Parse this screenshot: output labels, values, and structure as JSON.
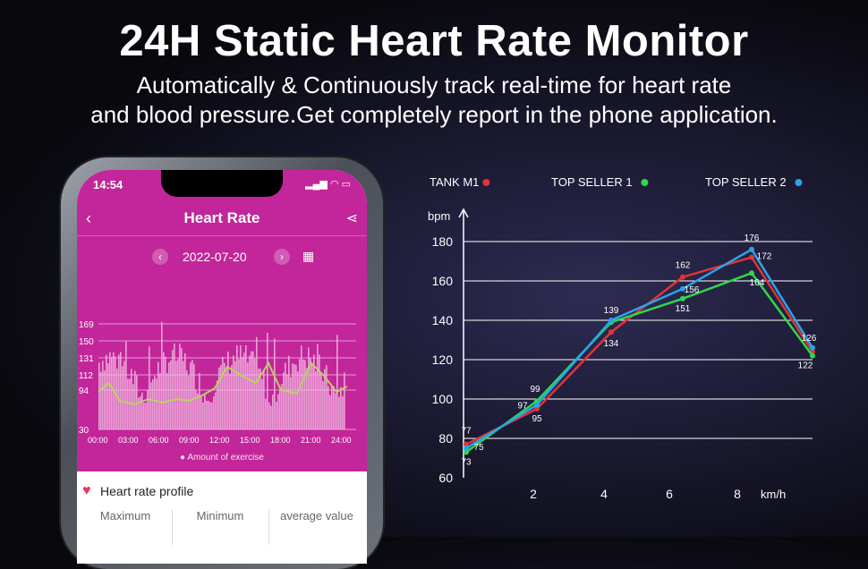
{
  "headline": "24H Static Heart Rate Monitor",
  "subline1": "Automatically & Continuously track real-time for heart rate",
  "subline2": "and blood pressure.Get completely report in the phone application.",
  "phone": {
    "time": "14:54",
    "title": "Heart Rate",
    "date": "2022-07-20",
    "y_ticks": [
      "169",
      "150",
      "131",
      "112",
      "94",
      "30"
    ],
    "x_ticks": [
      "00:00",
      "03:00",
      "06:00",
      "09:00",
      "12:00",
      "15:00",
      "18:00",
      "21:00",
      "24:00"
    ],
    "exercise_label": "Amount of exercise",
    "profile_title": "Heart rate profile",
    "columns": [
      "Maximum",
      "Minimum",
      "average value"
    ],
    "colors": {
      "background": "#c2269a",
      "line": "#b6d45c",
      "bars": "#f2b8e2"
    }
  },
  "chart_data": {
    "type": "line",
    "legend": [
      "TANK M1",
      "TOP SELLER 1",
      "TOP SELLER 2"
    ],
    "series": [
      {
        "name": "TANK M1",
        "color": "#e0343a",
        "x": [
          0,
          2,
          4,
          6,
          8,
          10
        ],
        "y": [
          77,
          95,
          134,
          162,
          172,
          124
        ],
        "labels": [
          "77",
          "95",
          "134",
          "162",
          "172",
          ""
        ]
      },
      {
        "name": "TOP SELLER 1",
        "color": "#2fd84a",
        "x": [
          0,
          2,
          4,
          6,
          8,
          10
        ],
        "y": [
          73,
          99,
          139,
          151,
          164,
          122
        ],
        "labels": [
          "73",
          "99",
          "139",
          "151",
          "164",
          "122"
        ]
      },
      {
        "name": "TOP SELLER 2",
        "color": "#2aa4e8",
        "x": [
          0,
          2,
          4,
          6,
          8,
          10
        ],
        "y": [
          75,
          97,
          140,
          156,
          176,
          126
        ],
        "labels": [
          "75",
          "97",
          "",
          "156",
          "176",
          "126"
        ]
      }
    ],
    "ylabel": "bpm",
    "xlabel": "km/h",
    "yticks": [
      60,
      80,
      100,
      120,
      140,
      160,
      180
    ],
    "xticks": [
      2,
      4,
      6,
      8
    ],
    "ylim": [
      60,
      180
    ],
    "grid": true
  }
}
